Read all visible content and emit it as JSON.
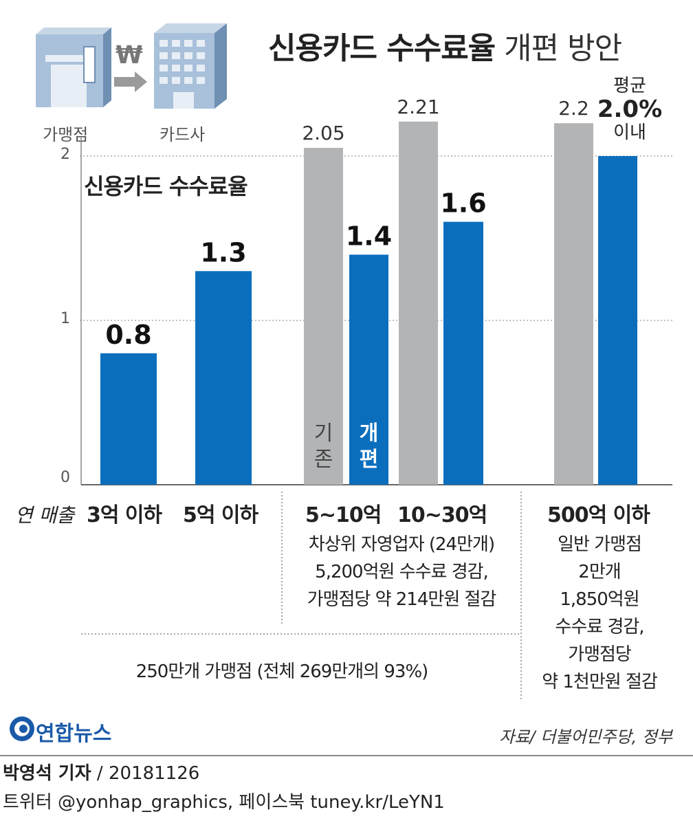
{
  "header": {
    "title_bold": "신용카드 수수료율",
    "title_light": "개편 방안",
    "icon_left_label": "가맹점",
    "icon_right_label": "카드사",
    "flow_symbol": "₩"
  },
  "chart_data": {
    "type": "bar",
    "title": "신용카드 수수료율",
    "xlabel": "연 매출",
    "ylim": [
      0,
      2.2
    ],
    "yticks": [
      0,
      1,
      2
    ],
    "categories": [
      "3억 이하",
      "5억 이하",
      "5~10억",
      "10~30억",
      "500억 이하"
    ],
    "series": [
      {
        "name": "기존",
        "values": [
          null,
          null,
          2.05,
          2.21,
          2.2
        ]
      },
      {
        "name": "개편",
        "values": [
          0.8,
          1.3,
          1.4,
          1.6,
          2.0
        ]
      }
    ],
    "value_labels": {
      "existing": [
        "",
        "",
        "2.05",
        "2.21",
        "2.2"
      ],
      "revised": [
        "0.8",
        "1.3",
        "1.4",
        "1.6",
        ""
      ]
    },
    "avg_annotation": {
      "line1": "평균",
      "line2": "2.0%",
      "line3": "이내"
    },
    "colors": {
      "existing": "#b3b4b6",
      "revised": "#0a6ebd",
      "grid": "#999999"
    }
  },
  "notes": {
    "group_mid": [
      "차상위 자영업자 (24만개)",
      "5,200억원 수수료 경감,",
      "가맹점당 약 214만원 절감"
    ],
    "group_right": [
      "일반 가맹점",
      "2만개",
      "1,850억원",
      "수수료 경감,",
      "가맹점당",
      "약 1천만원 절감"
    ],
    "bottom": "250만개 가맹점 (전체 269만개의 93%)"
  },
  "source": "자료/ 더불어민주당, 정부",
  "logo": "연합뉴스",
  "byline": {
    "name": "박영석 기자",
    "date": " / 20181126"
  },
  "social": "트위터 @yonhap_graphics, 페이스북 tuney.kr/LeYN1"
}
